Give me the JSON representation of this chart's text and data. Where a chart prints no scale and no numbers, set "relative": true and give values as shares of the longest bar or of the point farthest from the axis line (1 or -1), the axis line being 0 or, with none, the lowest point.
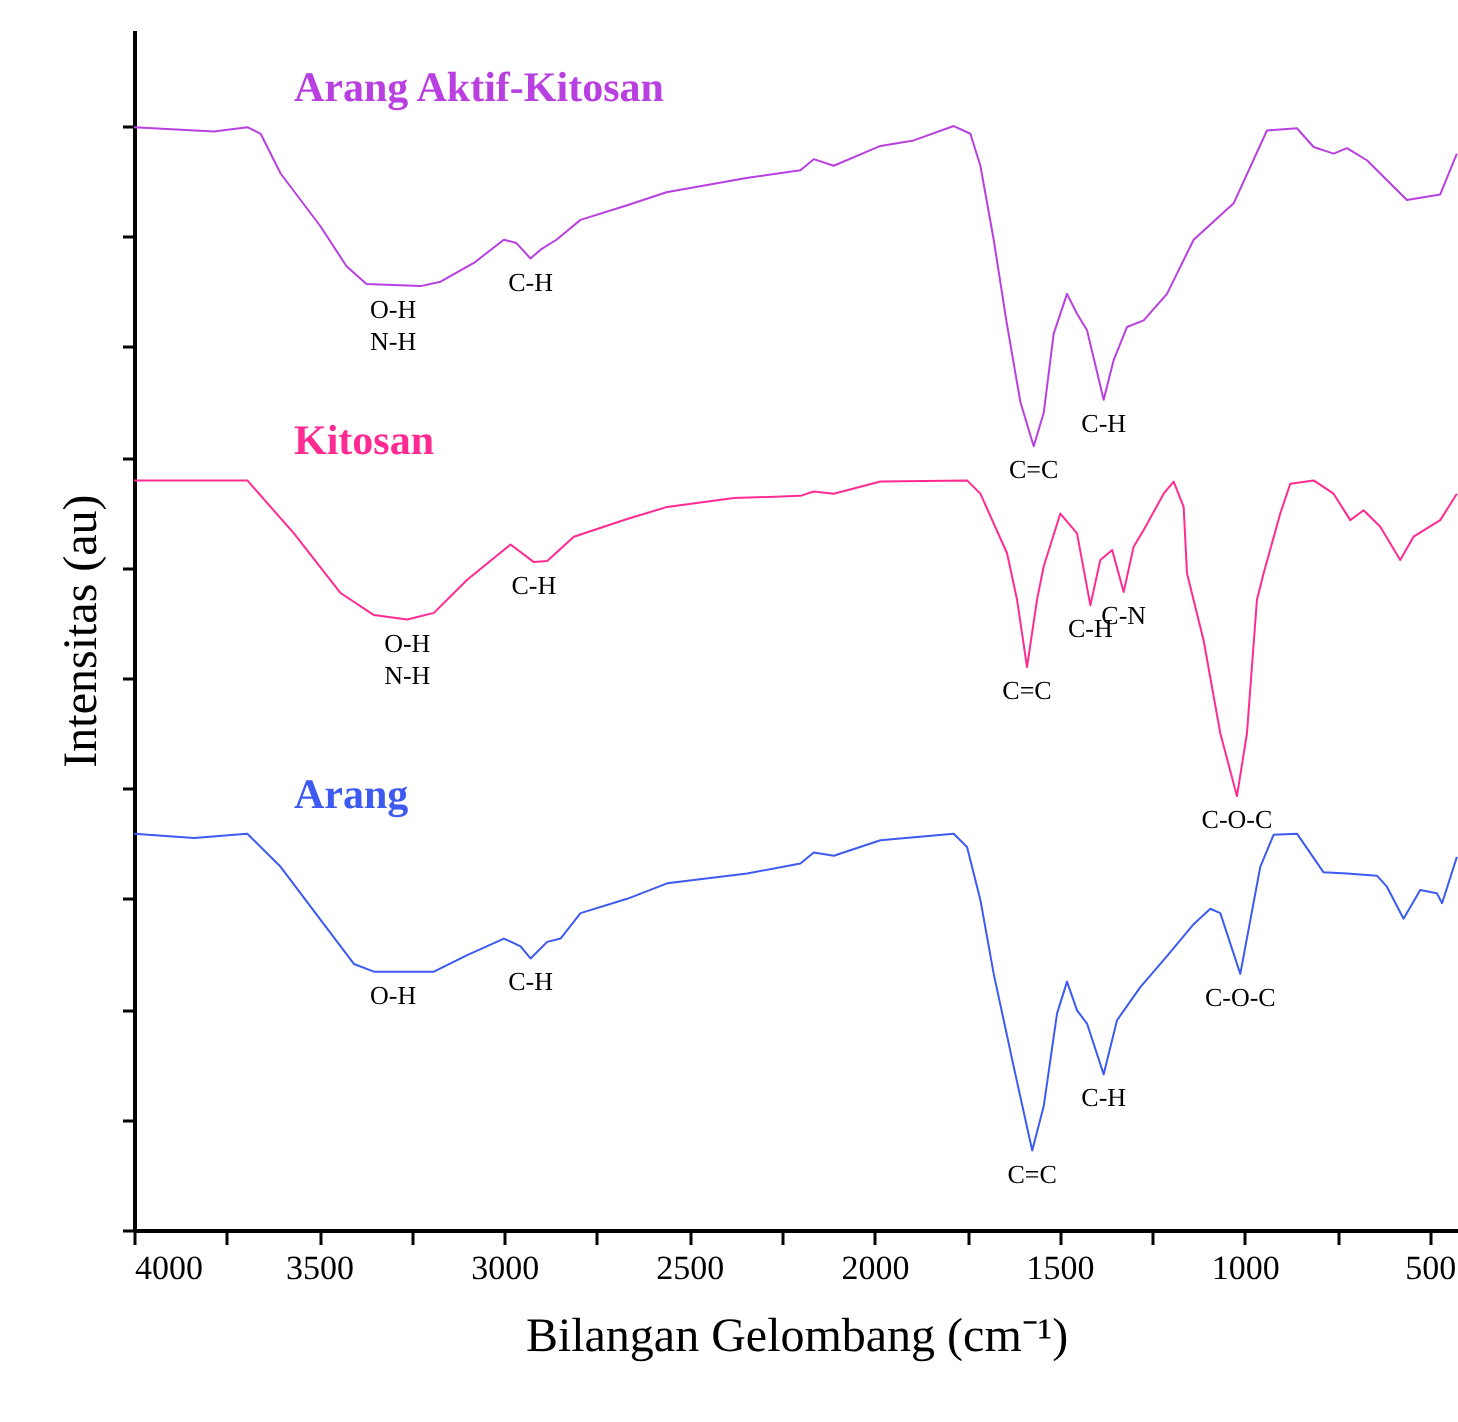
{
  "chart_data": {
    "type": "line",
    "relative": true,
    "xlabel": "Bilangan Gelombang (cm⁻¹)",
    "ylabel": "Intensitas (au)",
    "xlim": [
      4000,
      424
    ],
    "xticks": [
      4000,
      {
        "value": 3750,
        "label": null
      },
      3500,
      {
        "value": 3250,
        "label": null
      },
      3000,
      {
        "value": 2750,
        "label": null
      },
      2500,
      {
        "value": 2250,
        "label": null
      },
      2000,
      {
        "value": 1750,
        "label": null
      },
      1500,
      {
        "value": 1250,
        "label": null
      },
      1000,
      {
        "value": 750,
        "label": null
      },
      500
    ],
    "line_style": "solid",
    "marker": "none",
    "series": [
      {
        "name": "Arang Aktif-Kitosan",
        "color": "#b940e0",
        "x": [
          4000,
          3784,
          3694,
          3658,
          3604,
          3496,
          3426,
          3372,
          3226,
          3172,
          3082,
          3001,
          2967,
          2929,
          2902,
          2859,
          2794,
          2670,
          2562,
          2346,
          2200,
          2164,
          2110,
          1984,
          1894,
          1786,
          1741,
          1714,
          1678,
          1644,
          1606,
          1570,
          1543,
          1516,
          1480,
          1453,
          1426,
          1381,
          1354,
          1318,
          1273,
          1210,
          1138,
          1030,
          940,
          859,
          814,
          760,
          724,
          670,
          562,
          472,
          427
        ],
        "values": [
          0.999,
          0.995,
          0.999,
          0.993,
          0.957,
          0.909,
          0.873,
          0.857,
          0.855,
          0.859,
          0.876,
          0.897,
          0.894,
          0.88,
          0.888,
          0.897,
          0.915,
          0.928,
          0.94,
          0.953,
          0.96,
          0.97,
          0.964,
          0.982,
          0.987,
          1.0,
          0.993,
          0.964,
          0.897,
          0.824,
          0.75,
          0.71,
          0.74,
          0.812,
          0.848,
          0.83,
          0.815,
          0.752,
          0.788,
          0.818,
          0.824,
          0.848,
          0.897,
          0.93,
          0.996,
          0.998,
          0.981,
          0.975,
          0.98,
          0.969,
          0.933,
          0.938,
          0.975
        ]
      },
      {
        "name": "Kitosan",
        "color": "#ff2b92",
        "x": [
          4000,
          3694,
          3568,
          3442,
          3352,
          3262,
          3190,
          3100,
          2983,
          2920,
          2884,
          2812,
          2668,
          2560,
          2380,
          2200,
          2164,
          2110,
          1984,
          1750,
          1714,
          1642,
          1615,
          1588,
          1561,
          1543,
          1498,
          1453,
          1417,
          1390,
          1358,
          1327,
          1300,
          1273,
          1219,
          1192,
          1165,
          1156,
          1111,
          1066,
          1021,
          994,
          967,
          949,
          904,
          877,
          814,
          760,
          715,
          679,
          634,
          580,
          544,
          472,
          427
        ],
        "values": [
          0.679,
          0.679,
          0.631,
          0.577,
          0.557,
          0.553,
          0.559,
          0.589,
          0.621,
          0.605,
          0.606,
          0.628,
          0.644,
          0.655,
          0.663,
          0.665,
          0.669,
          0.667,
          0.678,
          0.679,
          0.667,
          0.613,
          0.571,
          0.51,
          0.571,
          0.601,
          0.649,
          0.631,
          0.566,
          0.607,
          0.616,
          0.578,
          0.619,
          0.634,
          0.667,
          0.678,
          0.655,
          0.595,
          0.534,
          0.45,
          0.393,
          0.45,
          0.571,
          0.595,
          0.649,
          0.676,
          0.679,
          0.667,
          0.643,
          0.652,
          0.637,
          0.607,
          0.628,
          0.643,
          0.667
        ]
      },
      {
        "name": "Arang",
        "color": "#3d5af1",
        "x": [
          4000,
          3838,
          3694,
          3604,
          3496,
          3406,
          3352,
          3190,
          3100,
          3001,
          2956,
          2929,
          2884,
          2848,
          2794,
          2668,
          2560,
          2344,
          2200,
          2164,
          2110,
          1984,
          1786,
          1750,
          1714,
          1678,
          1624,
          1574,
          1543,
          1507,
          1480,
          1453,
          1426,
          1381,
          1345,
          1282,
          1210,
          1138,
          1093,
          1066,
          1012,
          958,
          922,
          859,
          787,
          724,
          643,
          616,
          571,
          526,
          481,
          467,
          427
        ],
        "values": [
          0.359,
          0.355,
          0.359,
          0.329,
          0.281,
          0.241,
          0.234,
          0.234,
          0.249,
          0.264,
          0.257,
          0.246,
          0.261,
          0.264,
          0.287,
          0.3,
          0.314,
          0.323,
          0.332,
          0.342,
          0.339,
          0.353,
          0.359,
          0.347,
          0.299,
          0.232,
          0.148,
          0.072,
          0.112,
          0.196,
          0.225,
          0.199,
          0.187,
          0.141,
          0.19,
          0.22,
          0.248,
          0.277,
          0.291,
          0.287,
          0.232,
          0.329,
          0.358,
          0.359,
          0.324,
          0.323,
          0.321,
          0.311,
          0.282,
          0.308,
          0.305,
          0.296,
          0.338
        ]
      }
    ],
    "annotations": [
      {
        "text": "O-H\nN-H",
        "x": 3300,
        "y": 0.855
      },
      {
        "text": "C-H",
        "x": 2929,
        "y": 0.88
      },
      {
        "text": "C=C",
        "x": 1570,
        "y": 0.71
      },
      {
        "text": "C-H",
        "x": 1381,
        "y": 0.752
      },
      {
        "text": "O-H\nN-H",
        "x": 3262,
        "y": 0.553
      },
      {
        "text": "C-H",
        "x": 2920,
        "y": 0.605
      },
      {
        "text": "C=C",
        "x": 1588,
        "y": 0.51
      },
      {
        "text": "C-H",
        "x": 1417,
        "y": 0.566
      },
      {
        "text": "C-N",
        "x": 1327,
        "y": 0.578
      },
      {
        "text": "C-O-C",
        "x": 1021,
        "y": 0.393
      },
      {
        "text": "O-H",
        "x": 3300,
        "y": 0.234
      },
      {
        "text": "C-H",
        "x": 2929,
        "y": 0.246
      },
      {
        "text": "C=C",
        "x": 1574,
        "y": 0.072
      },
      {
        "text": "C-H",
        "x": 1381,
        "y": 0.141
      },
      {
        "text": "C-O-C",
        "x": 1012,
        "y": 0.232
      }
    ]
  }
}
